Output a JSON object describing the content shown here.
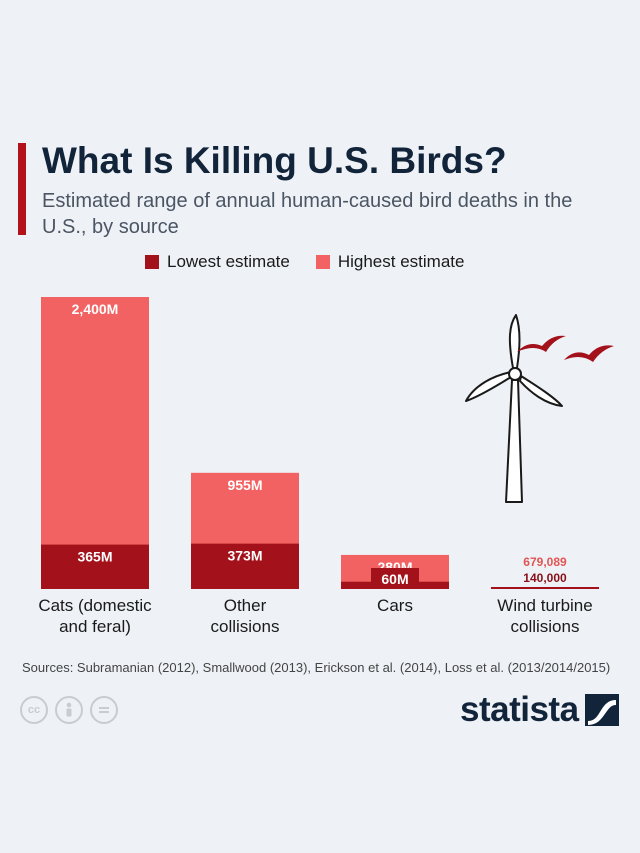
{
  "header": {
    "title": "What Is Killing U.S. Birds?",
    "subtitle": "Estimated range of annual human-caused bird deaths in the U.S., by source"
  },
  "colors": {
    "accent": "#b3121b",
    "lowest": "#a3111a",
    "highest": "#f26262",
    "title": "#12243a"
  },
  "chart_data": {
    "type": "bar",
    "stacking": "overlay",
    "categories": [
      "Cats (domestic and feral)",
      "Other collisions",
      "Cars",
      "Wind turbine collisions"
    ],
    "series": [
      {
        "name": "Lowest estimate",
        "values": [
          365000000,
          373000000,
          60000000,
          140000
        ],
        "labels": [
          "365M",
          "373M",
          "60M",
          "140,000"
        ],
        "color": "#a3111a"
      },
      {
        "name": "Highest estimate",
        "values": [
          2400000000,
          955000000,
          280000000,
          679089
        ],
        "labels": [
          "2,400M",
          "955M",
          "280M",
          "679,089"
        ],
        "color": "#f26262"
      }
    ],
    "category_label_lines": [
      [
        "Cats (domestic",
        "and feral)"
      ],
      [
        "Other",
        "collisions"
      ],
      [
        "Cars"
      ],
      [
        "Wind turbine",
        "collisions"
      ]
    ],
    "ylim": [
      0,
      2400000000
    ],
    "grid": false,
    "legend": "top"
  },
  "footer": {
    "sources": "Sources: Subramanian (2012), Smallwood (2013), Erickson et al. (2014), Loss et al. (2013/2014/2015)",
    "brand": "statista"
  },
  "icons": [
    "wind-turbine-icon",
    "bird-icon",
    "creative-commons-icon",
    "attribution-icon",
    "no-derivatives-icon",
    "statista-logo-icon"
  ]
}
